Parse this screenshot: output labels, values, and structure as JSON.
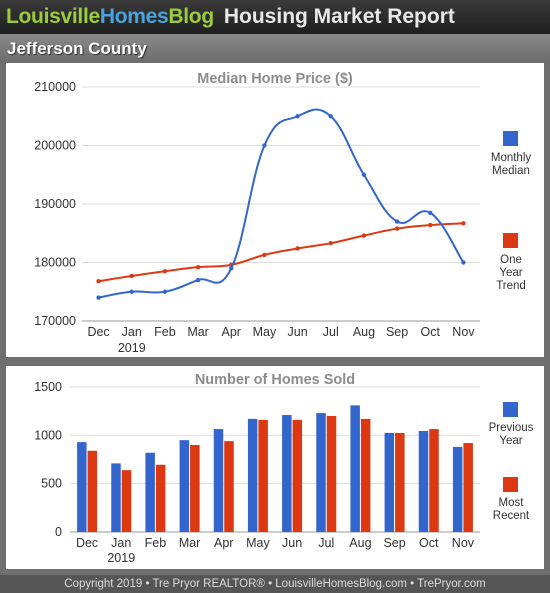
{
  "header": {
    "logo_part1": "Louisville",
    "logo_part2": "Homes",
    "logo_part3": "Blog",
    "title": "Housing Market Report"
  },
  "region": "Jefferson County",
  "footer": "Copyright 2019 • Tre Pryor REALTOR® • LouisvilleHomesBlog.com • TrePryor.com",
  "colors": {
    "blue": "#3366cc",
    "red": "#dc3912"
  },
  "chart_data": [
    {
      "type": "line",
      "title": "Median Home Price ($)",
      "categories": [
        "Dec",
        "Jan",
        "Feb",
        "Mar",
        "Apr",
        "May",
        "Jun",
        "Jul",
        "Aug",
        "Sep",
        "Oct",
        "Nov"
      ],
      "year_label": "2019",
      "ylim": [
        170000,
        210000
      ],
      "yticks": [
        "170000",
        "180000",
        "190000",
        "200000",
        "210000"
      ],
      "grid": true,
      "legend_position": "right",
      "series": [
        {
          "name": "Monthly Median",
          "color": "#3366cc",
          "values": [
            174000,
            175000,
            175000,
            177000,
            179000,
            200000,
            205000,
            205000,
            195000,
            187000,
            188500,
            180000
          ]
        },
        {
          "name": "One Year Trend",
          "color": "#dc3912",
          "values": [
            176800,
            177700,
            178500,
            179200,
            179600,
            181300,
            182400,
            183300,
            184600,
            185800,
            186400,
            186700
          ]
        }
      ]
    },
    {
      "type": "bar",
      "title": "Number of Homes Sold",
      "categories": [
        "Dec",
        "Jan",
        "Feb",
        "Mar",
        "Apr",
        "May",
        "Jun",
        "Jul",
        "Aug",
        "Sep",
        "Oct",
        "Nov"
      ],
      "year_label": "2019",
      "ylim": [
        0,
        1500
      ],
      "yticks": [
        "0",
        "500",
        "1000",
        "1500"
      ],
      "grid": true,
      "legend_position": "right",
      "series": [
        {
          "name": "Previous Year",
          "color": "#3366cc",
          "values": [
            930,
            710,
            820,
            950,
            1065,
            1170,
            1210,
            1230,
            1310,
            1025,
            1045,
            880
          ]
        },
        {
          "name": "Most Recent",
          "color": "#dc3912",
          "values": [
            840,
            640,
            695,
            900,
            940,
            1160,
            1160,
            1200,
            1170,
            1025,
            1065,
            920
          ]
        }
      ]
    }
  ]
}
